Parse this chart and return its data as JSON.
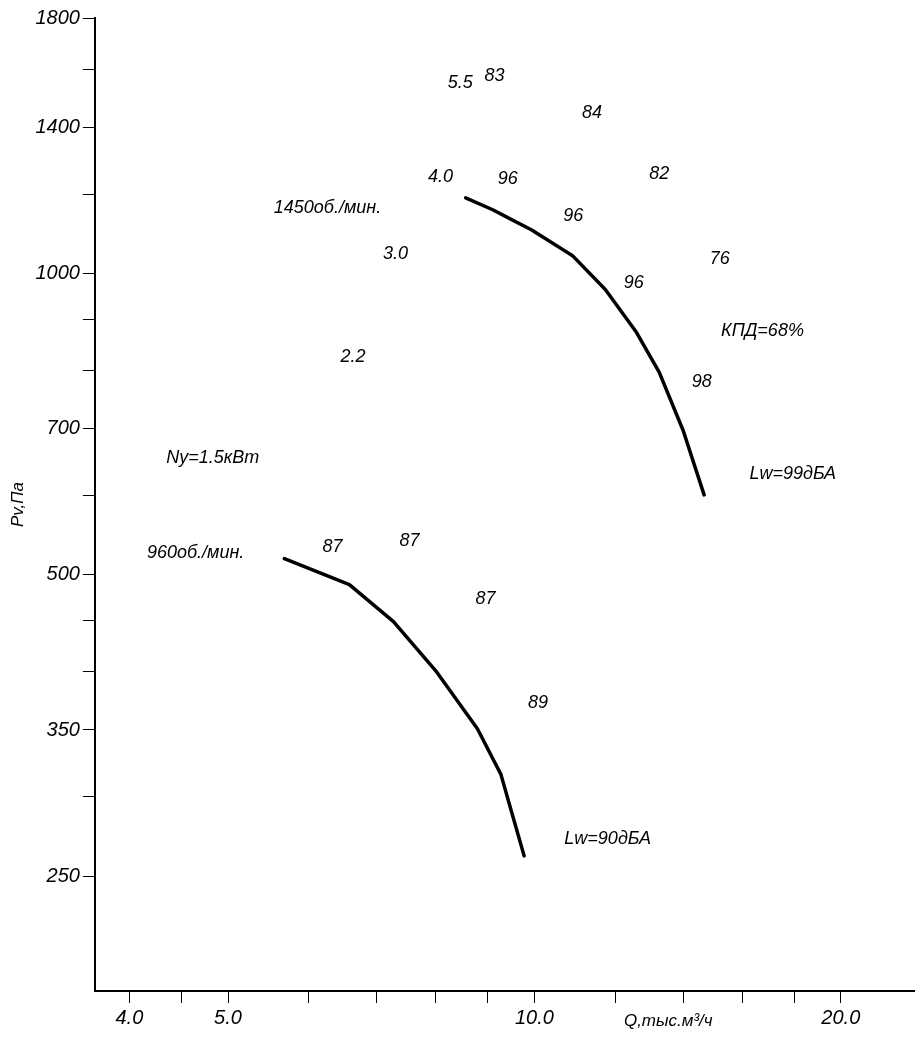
{
  "chart_data": {
    "type": "line",
    "xlabel": "Q,тыс.м³/ч",
    "ylabel": "Pv,Па",
    "log": "xy",
    "legend": false,
    "marker": "none",
    "line_style": "solid",
    "xlim": [
      3.7,
      23.6
    ],
    "ylim": [
      192,
      1800
    ],
    "xticks": [
      {
        "value": 4,
        "label": "4.0"
      },
      {
        "value": 4.5,
        "label": null
      },
      {
        "value": 5,
        "label": "5.0"
      },
      {
        "value": 6,
        "label": null
      },
      {
        "value": 7,
        "label": null
      },
      {
        "value": 8,
        "label": null
      },
      {
        "value": 9,
        "label": null
      },
      {
        "value": 10,
        "label": "10.0"
      },
      {
        "value": 12,
        "label": null
      },
      {
        "value": 14,
        "label": null
      },
      {
        "value": 16,
        "label": null
      },
      {
        "value": 18,
        "label": null
      },
      {
        "value": 20,
        "label": "20.0"
      }
    ],
    "yticks": [
      250,
      {
        "value": 300,
        "label": null
      },
      350,
      {
        "value": 400,
        "label": null
      },
      {
        "value": 450,
        "label": null
      },
      500,
      {
        "value": 600,
        "label": null
      },
      700,
      {
        "value": 800,
        "label": null
      },
      {
        "value": 900,
        "label": null
      },
      1000,
      {
        "value": 1200,
        "label": null
      },
      1400,
      {
        "value": 1600,
        "label": null
      },
      1800
    ],
    "series": [
      {
        "color": "#000000",
        "x": [
          8.56,
          9.1,
          9.93,
          10.9,
          11.74,
          12.6,
          13.26,
          14.0,
          14.68
        ],
        "values": [
          1190,
          1158,
          1106,
          1042,
          964,
          873,
          797,
          697,
          601
        ]
      },
      {
        "color": "#000000",
        "x": [
          5.68,
          6.58,
          7.27,
          8.0,
          8.79,
          9.27,
          9.77
        ],
        "values": [
          519,
          489,
          449,
          401,
          351,
          316,
          262
        ]
      }
    ],
    "annotations": [
      "1450об./мин.",
      "960об./мин.",
      "Ny=1.5кВт",
      "5.5",
      "4.0",
      "3.0",
      "2.2",
      "96",
      "96",
      "96",
      "98",
      "87",
      "87",
      "87",
      "89",
      "Lw=99дБА",
      "Lw=90дБА",
      "83",
      "84",
      "82",
      "76",
      "КПД=68%"
    ]
  }
}
